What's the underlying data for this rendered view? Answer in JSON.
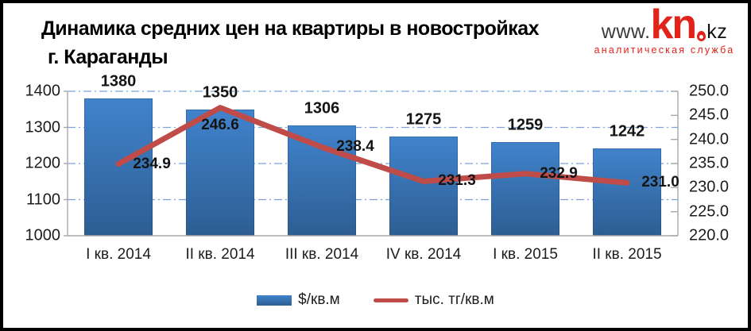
{
  "header": {
    "title_line1": "Динамика средних цен на квартиры в новостройках",
    "title_line2": "г. Караганды",
    "logo": {
      "www": "www.",
      "kn": "kn",
      "kz": "kz",
      "subtitle": "аналитическая служба",
      "red": "#e2231a",
      "dark": "#3b3b3a"
    }
  },
  "chart_data": {
    "type": "bar+line",
    "categories": [
      "I кв. 2014",
      "II кв. 2014",
      "III кв. 2014",
      "IV кв. 2014",
      "I кв. 2015",
      "II кв. 2015"
    ],
    "series": [
      {
        "name": "$/кв.м",
        "type": "bar",
        "axis": "left",
        "color": "#3b7ac4",
        "color_top": "#4183cc",
        "color_bottom": "#2d5e92",
        "values": [
          1380,
          1350,
          1306,
          1275,
          1259,
          1242
        ]
      },
      {
        "name": "тыс. тг/кв.м",
        "type": "line",
        "axis": "right",
        "color": "#bf4c48",
        "values": [
          234.9,
          246.6,
          238.4,
          231.3,
          232.9,
          231.0
        ],
        "label_positions": [
          "right",
          "below",
          "right",
          "right",
          "right",
          "right"
        ]
      }
    ],
    "left_axis": {
      "min": 1000,
      "max": 1400,
      "step": 100,
      "ticks": [
        "1400",
        "1300",
        "1200",
        "1100",
        "1000"
      ]
    },
    "right_axis": {
      "min": 220,
      "max": 250,
      "step": 5,
      "ticks": [
        "250.0",
        "245.0",
        "240.0",
        "235.0",
        "230.0",
        "225.0",
        "220.0"
      ]
    },
    "grid": {
      "style": "dash-dot",
      "color": "#7ba3da"
    },
    "axis_color": "#a8a8a8",
    "legend_position": "bottom"
  }
}
